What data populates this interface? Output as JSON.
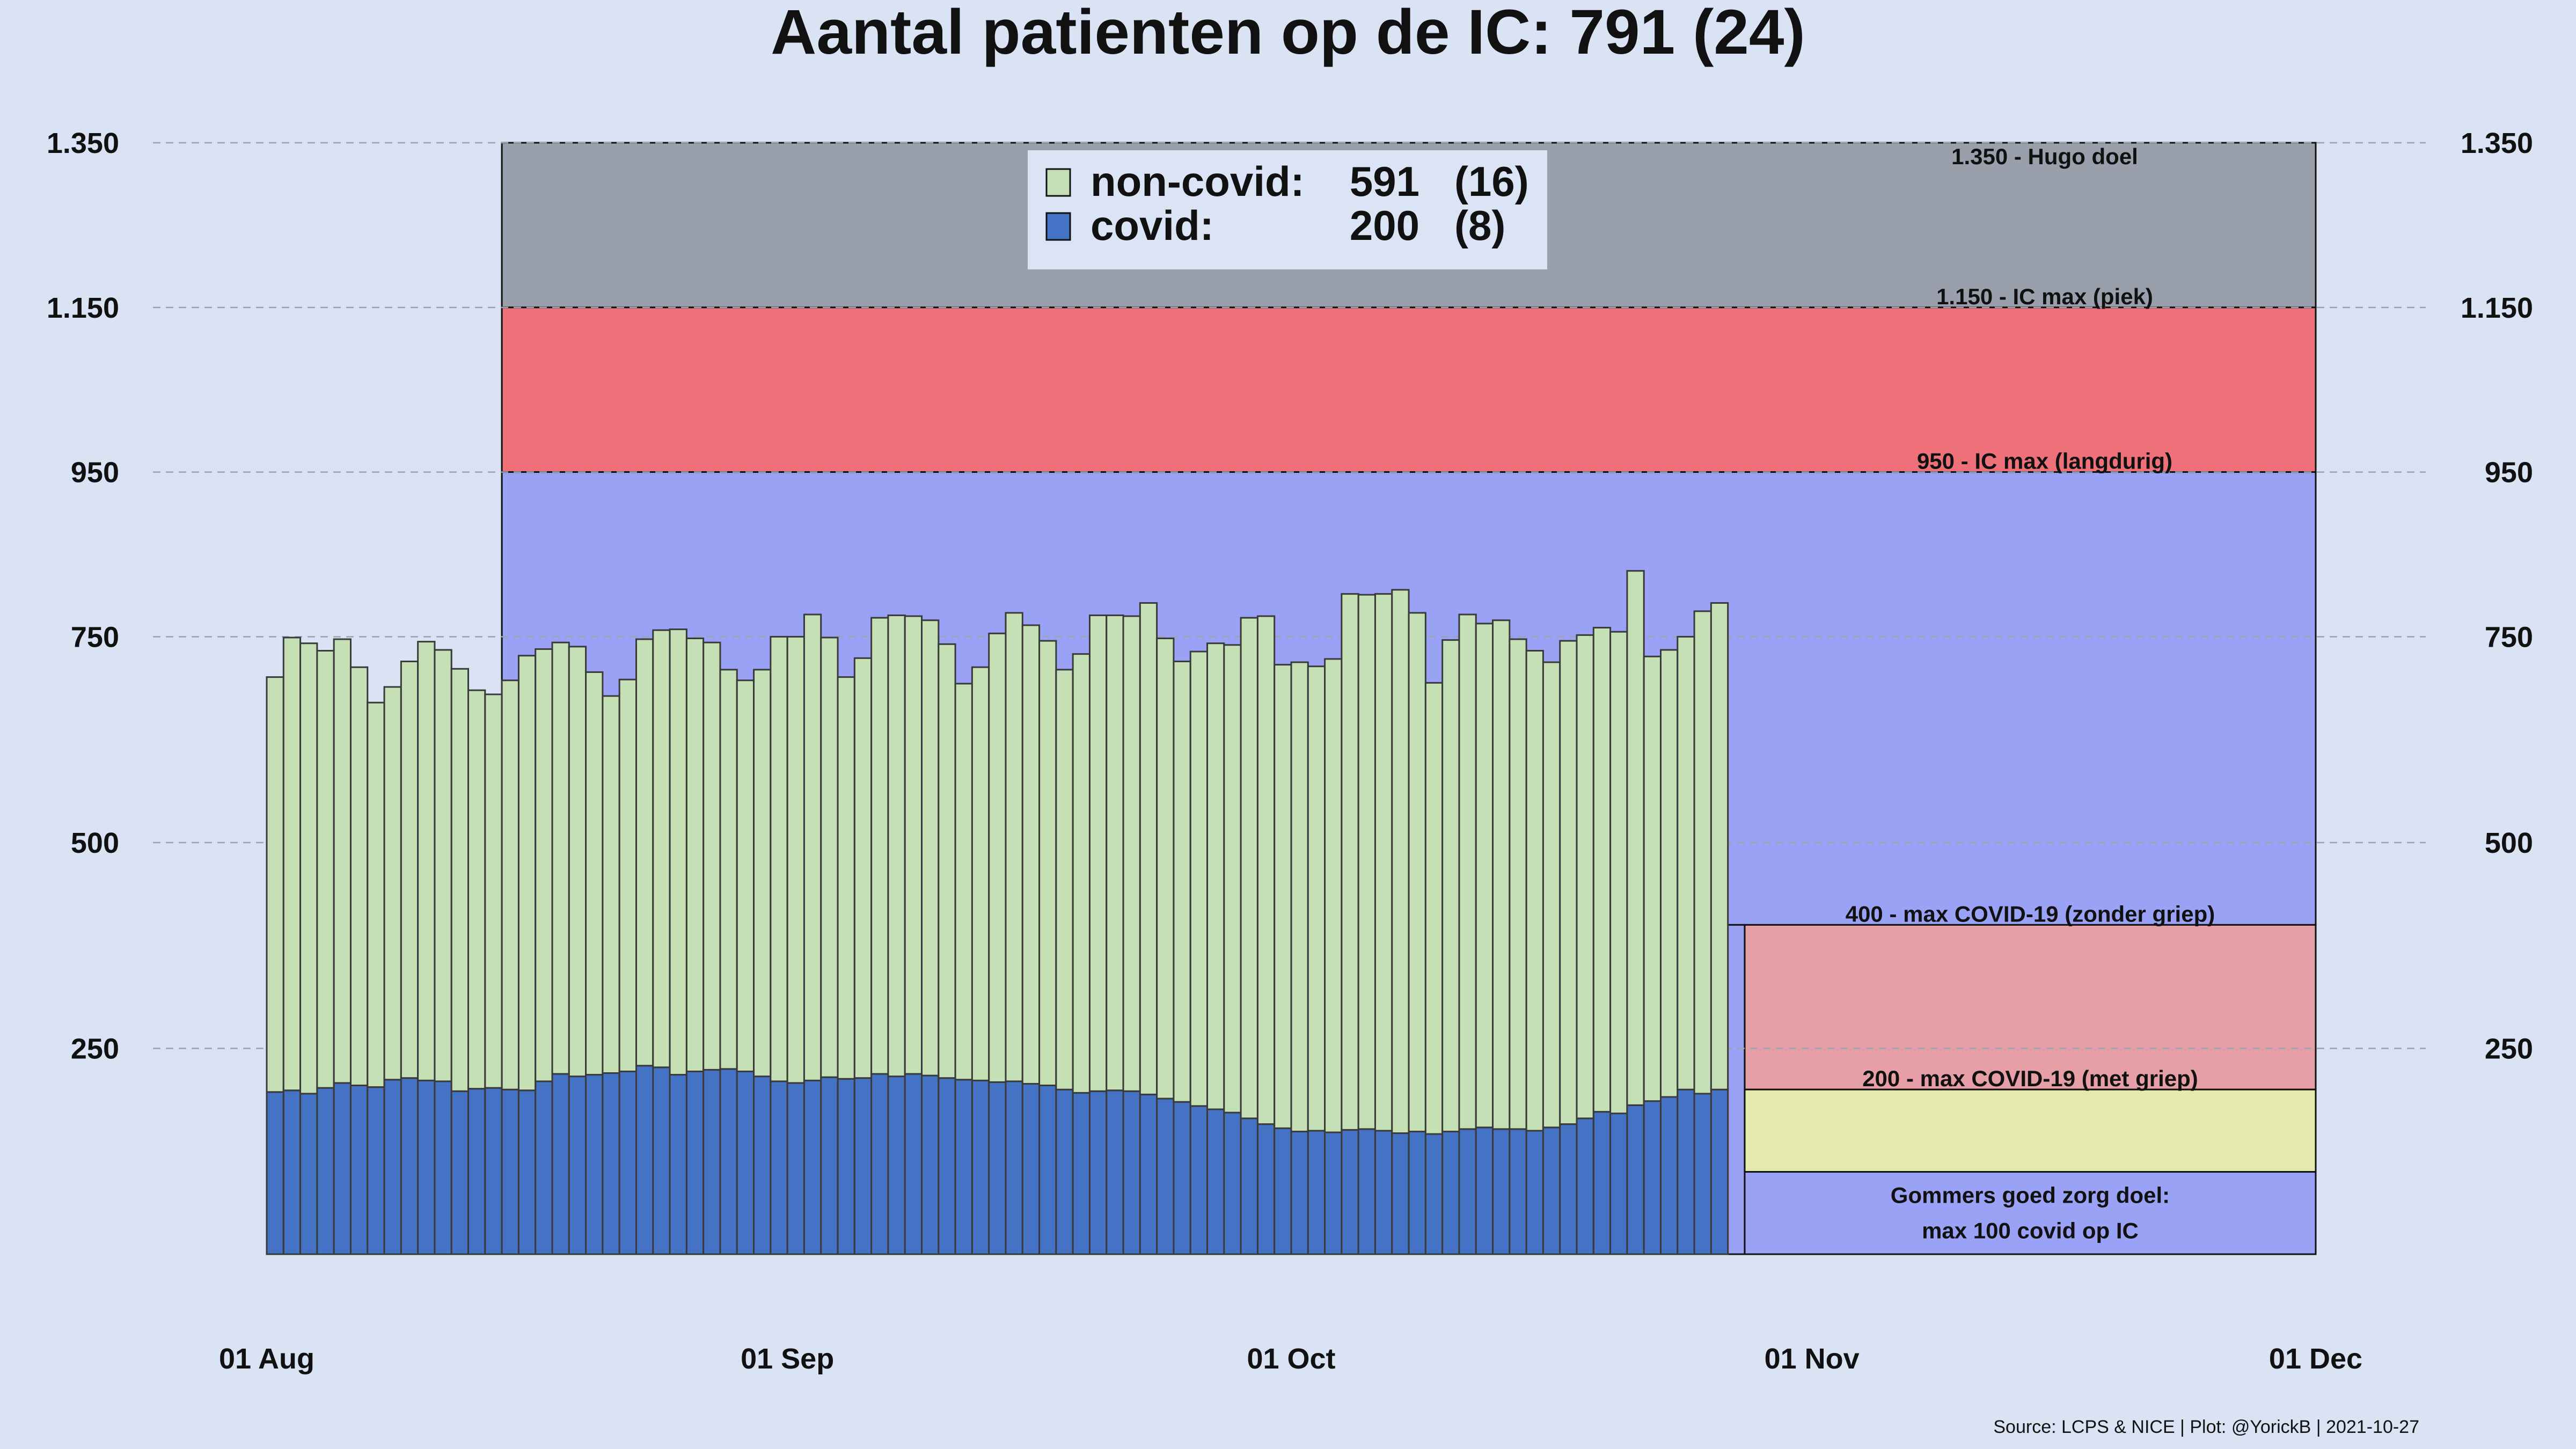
{
  "chart_data": {
    "type": "bar",
    "stacked": true,
    "title": "Aantal patienten op de IC: 791  (24)",
    "source": "Source: LCPS & NICE | Plot: @YorickB |  2021-10-27",
    "x_axis": {
      "ticks": [
        "01 Aug",
        "01 Sep",
        "01 Oct",
        "01 Nov",
        "01 Dec"
      ],
      "start": "2021-08-01",
      "end": "2021-12-01"
    },
    "y_axis": {
      "ticks": [
        250,
        500,
        750,
        950,
        1150,
        1350
      ],
      "tick_labels": [
        "250",
        "500",
        "750",
        "950",
        "1.150",
        "1.350"
      ],
      "ylim": [
        0,
        1350
      ],
      "both_sides": true,
      "grid": "dashed horizontal"
    },
    "x_start": "2021-08-01",
    "series": [
      {
        "name": "covid",
        "color": "#4472c4",
        "values": [
          197,
          199,
          195,
          202,
          208,
          205,
          203,
          212,
          214,
          211,
          210,
          198,
          201,
          202,
          200,
          199,
          210,
          219,
          216,
          218,
          220,
          222,
          229,
          227,
          218,
          222,
          224,
          225,
          222,
          216,
          210,
          208,
          211,
          215,
          213,
          214,
          219,
          216,
          219,
          217,
          214,
          212,
          211,
          209,
          210,
          207,
          205,
          200,
          196,
          198,
          199,
          198,
          194,
          189,
          185,
          180,
          176,
          172,
          165,
          158,
          153,
          149,
          150,
          148,
          151,
          152,
          150,
          147,
          149,
          146,
          149,
          152,
          154,
          152,
          152,
          150,
          154,
          158,
          165,
          173,
          171,
          181,
          186,
          191,
          200,
          195,
          200
        ]
      },
      {
        "name": "non-covid",
        "color": "#c5e0b4",
        "values": [
          504,
          550,
          547,
          531,
          539,
          508,
          467,
          477,
          506,
          533,
          524,
          513,
          484,
          478,
          497,
          528,
          525,
          524,
          522,
          489,
          458,
          476,
          518,
          531,
          541,
          526,
          519,
          485,
          475,
          494,
          540,
          542,
          566,
          534,
          488,
          510,
          554,
          560,
          556,
          553,
          527,
          481,
          502,
          545,
          569,
          557,
          540,
          510,
          533,
          578,
          577,
          577,
          597,
          559,
          535,
          552,
          566,
          568,
          608,
          617,
          563,
          570,
          564,
          575,
          651,
          649,
          652,
          660,
          630,
          548,
          597,
          625,
          612,
          618,
          595,
          583,
          565,
          587,
          587,
          588,
          585,
          649,
          540,
          543,
          550,
          586,
          591
        ]
      }
    ],
    "totals_last": {
      "total": 791,
      "delta": 24
    },
    "legend": {
      "position": "top-center",
      "entries": [
        {
          "label": "non-covid:",
          "value": "591",
          "delta": "(16)",
          "color": "#c5e0b4"
        },
        {
          "label": "covid:",
          "value": "200",
          "delta": "(8)",
          "color": "#4472c4"
        }
      ]
    },
    "zones": [
      {
        "label": "1.350 - Hugo doel",
        "from": 1150,
        "to": 1350,
        "color": "#9aa0ab",
        "x_from": "2021-08-15",
        "x_to": "2021-12-01"
      },
      {
        "label": "1.150 - IC max (piek)",
        "from": 950,
        "to": 1150,
        "color": "#ee7179",
        "x_from": "2021-08-15",
        "x_to": "2021-12-01"
      },
      {
        "label": "950 - IC max (langdurig)",
        "from": 400,
        "to": 950,
        "color": "#9aa2f5",
        "x_from": "2021-08-15",
        "x_to": "2021-12-01"
      },
      {
        "label": "",
        "from": 0,
        "to": 400,
        "color": "#9aa2f5",
        "x_from": "2021-08-15",
        "x_to": "2021-10-28"
      },
      {
        "label": "400 - max COVID-19 (zonder griep)",
        "from": 200,
        "to": 400,
        "color": "#e79fa7",
        "x_from": "2021-10-28",
        "x_to": "2021-12-01"
      },
      {
        "label": "200 - max COVID-19 (met griep)",
        "from": 100,
        "to": 200,
        "color": "#e5ebaf",
        "x_from": "2021-10-28",
        "x_to": "2021-12-01"
      },
      {
        "label": "Gommers goed zorg doel:",
        "label2": "max 100 covid op IC",
        "from": 0,
        "to": 100,
        "color": "#9aa2f5",
        "x_from": "2021-10-28",
        "x_to": "2021-12-01"
      }
    ]
  }
}
